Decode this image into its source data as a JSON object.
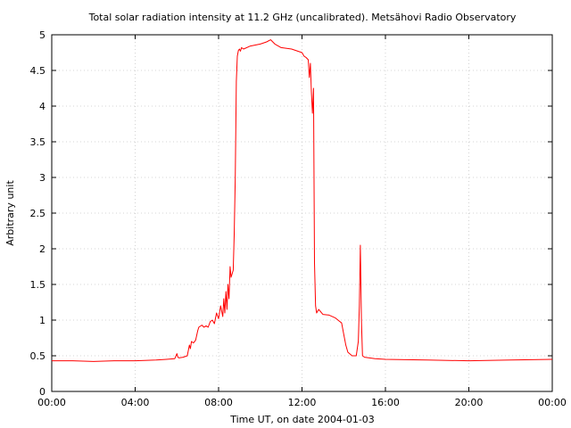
{
  "chart_data": {
    "type": "line",
    "title": "Total solar radiation intensity at 11.2 GHz (uncalibrated). Metsähovi Radio Observatory",
    "xlabel": "Time UT, on date 2004-01-03",
    "ylabel": "Arbitrary unit",
    "xlim": [
      0,
      24
    ],
    "ylim": [
      0,
      5
    ],
    "x_unit": "hours UT",
    "x_ticks": [
      0,
      4,
      8,
      12,
      16,
      20,
      24
    ],
    "x_tick_labels": [
      "00:00",
      "04:00",
      "08:00",
      "12:00",
      "16:00",
      "20:00",
      "00:00"
    ],
    "y_ticks": [
      0,
      0.5,
      1,
      1.5,
      2,
      2.5,
      3,
      3.5,
      4,
      4.5,
      5
    ],
    "y_tick_labels": [
      "0",
      "0.5",
      "1",
      "1.5",
      "2",
      "2.5",
      "3",
      "3.5",
      "4",
      "4.5",
      "5"
    ],
    "grid": true,
    "legend": false,
    "color": "#ff0000",
    "series": [
      {
        "x": [
          0,
          1,
          2,
          3,
          4,
          5,
          5.5,
          5.9,
          6.0,
          6.05,
          6.1,
          6.3,
          6.5,
          6.6,
          6.65,
          6.7,
          6.8,
          6.9,
          7.0,
          7.05,
          7.2,
          7.3,
          7.4,
          7.5,
          7.6,
          7.7,
          7.8,
          7.9,
          8.0,
          8.1,
          8.2,
          8.25,
          8.3,
          8.35,
          8.4,
          8.45,
          8.5,
          8.55,
          8.6,
          8.65,
          8.7,
          8.75,
          8.8,
          8.85,
          8.9,
          8.95,
          9.0,
          9.05,
          9.1,
          9.2,
          9.5,
          10.0,
          10.3,
          10.5,
          10.7,
          11.0,
          11.5,
          12.0,
          12.1,
          12.2,
          12.3,
          12.35,
          12.4,
          12.45,
          12.5,
          12.55,
          12.6,
          12.65,
          12.7,
          12.8,
          13.0,
          13.3,
          13.6,
          13.9,
          14.0,
          14.1,
          14.2,
          14.4,
          14.6,
          14.7,
          14.75,
          14.8,
          14.85,
          14.9,
          15.0,
          15.5,
          16.0,
          18.0,
          20.0,
          22.0,
          24.0
        ],
        "y": [
          0.43,
          0.43,
          0.42,
          0.43,
          0.43,
          0.44,
          0.45,
          0.46,
          0.53,
          0.48,
          0.47,
          0.48,
          0.5,
          0.65,
          0.6,
          0.7,
          0.68,
          0.72,
          0.85,
          0.9,
          0.93,
          0.9,
          0.92,
          0.9,
          0.98,
          1.0,
          0.95,
          1.1,
          1.02,
          1.2,
          1.05,
          1.3,
          1.1,
          1.4,
          1.15,
          1.5,
          1.3,
          1.75,
          1.6,
          1.65,
          1.7,
          2.2,
          3.0,
          4.35,
          4.7,
          4.78,
          4.8,
          4.77,
          4.82,
          4.8,
          4.84,
          4.87,
          4.9,
          4.93,
          4.87,
          4.82,
          4.8,
          4.75,
          4.7,
          4.68,
          4.65,
          4.4,
          4.6,
          4.2,
          3.9,
          4.25,
          1.8,
          1.2,
          1.1,
          1.15,
          1.08,
          1.07,
          1.03,
          0.96,
          0.8,
          0.65,
          0.55,
          0.5,
          0.5,
          0.7,
          1.2,
          2.05,
          1.0,
          0.5,
          0.48,
          0.46,
          0.45,
          0.44,
          0.43,
          0.44,
          0.45
        ]
      }
    ]
  }
}
